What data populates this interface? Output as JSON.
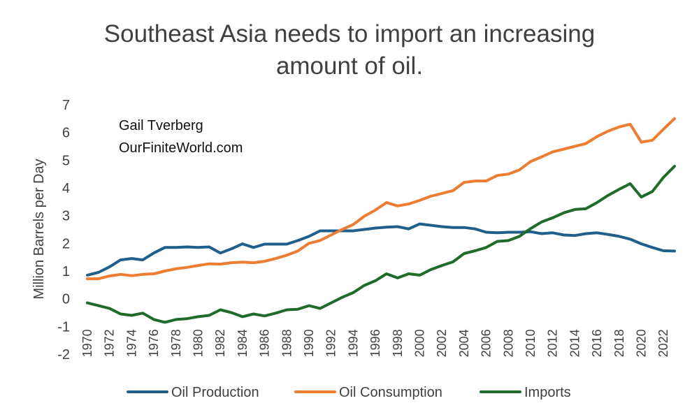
{
  "chart_data": {
    "type": "line",
    "title": "Southeast Asia needs to import an increasing amount of oil.",
    "ylabel": "Million Barrels per Day",
    "xlabel": "",
    "ylim": [
      -2,
      7
    ],
    "yticks": [
      -2,
      -1,
      0,
      1,
      2,
      3,
      4,
      5,
      6,
      7
    ],
    "xtick_labels": [
      "1970",
      "1972",
      "1974",
      "1976",
      "1978",
      "1980",
      "1982",
      "1984",
      "1986",
      "1988",
      "1990",
      "1992",
      "1994",
      "1996",
      "1998",
      "2000",
      "2002",
      "2004",
      "2006",
      "2008",
      "2010",
      "2012",
      "2014",
      "2016",
      "2018",
      "2020",
      "2022"
    ],
    "grid": false,
    "legend_position": "bottom",
    "annotations": [
      "Gail Tverberg",
      "OurFiniteWorld.com"
    ],
    "x": [
      1970,
      1971,
      1972,
      1973,
      1974,
      1975,
      1976,
      1977,
      1978,
      1979,
      1980,
      1981,
      1982,
      1983,
      1984,
      1985,
      1986,
      1987,
      1988,
      1989,
      1990,
      1991,
      1992,
      1993,
      1994,
      1995,
      1996,
      1997,
      1998,
      1999,
      2000,
      2001,
      2002,
      2003,
      2004,
      2005,
      2006,
      2007,
      2008,
      2009,
      2010,
      2011,
      2012,
      2013,
      2014,
      2015,
      2016,
      2017,
      2018,
      2019,
      2020,
      2021,
      2022,
      2023
    ],
    "series": [
      {
        "name": "Oil Production",
        "color": "#1f5f8b",
        "values": [
          0.85,
          0.95,
          1.15,
          1.4,
          1.45,
          1.4,
          1.65,
          1.85,
          1.85,
          1.87,
          1.85,
          1.87,
          1.65,
          1.8,
          1.98,
          1.85,
          1.97,
          1.97,
          1.97,
          2.1,
          2.25,
          2.45,
          2.45,
          2.45,
          2.45,
          2.5,
          2.55,
          2.58,
          2.6,
          2.52,
          2.7,
          2.65,
          2.6,
          2.57,
          2.57,
          2.52,
          2.4,
          2.38,
          2.4,
          2.4,
          2.42,
          2.35,
          2.38,
          2.3,
          2.28,
          2.35,
          2.38,
          2.32,
          2.25,
          2.15,
          1.98,
          1.85,
          1.73,
          1.72
        ]
      },
      {
        "name": "Oil Consumption",
        "color": "#ed7d31",
        "values": [
          0.72,
          0.72,
          0.82,
          0.88,
          0.83,
          0.88,
          0.9,
          1.0,
          1.08,
          1.13,
          1.2,
          1.26,
          1.25,
          1.3,
          1.32,
          1.3,
          1.35,
          1.45,
          1.57,
          1.72,
          2.0,
          2.1,
          2.3,
          2.5,
          2.68,
          2.98,
          3.2,
          3.47,
          3.35,
          3.42,
          3.55,
          3.7,
          3.8,
          3.9,
          4.2,
          4.25,
          4.25,
          4.45,
          4.5,
          4.65,
          4.95,
          5.12,
          5.3,
          5.4,
          5.5,
          5.6,
          5.85,
          6.05,
          6.2,
          6.3,
          5.65,
          5.72,
          6.12,
          6.5
        ]
      },
      {
        "name": "Imports",
        "color": "#1e6b2a",
        "values": [
          -0.15,
          -0.25,
          -0.35,
          -0.55,
          -0.6,
          -0.52,
          -0.75,
          -0.85,
          -0.75,
          -0.72,
          -0.65,
          -0.6,
          -0.4,
          -0.5,
          -0.65,
          -0.55,
          -0.62,
          -0.52,
          -0.4,
          -0.38,
          -0.25,
          -0.35,
          -0.15,
          0.05,
          0.22,
          0.48,
          0.65,
          0.9,
          0.75,
          0.9,
          0.85,
          1.05,
          1.2,
          1.33,
          1.63,
          1.73,
          1.85,
          2.07,
          2.1,
          2.25,
          2.53,
          2.77,
          2.92,
          3.1,
          3.22,
          3.25,
          3.47,
          3.73,
          3.95,
          4.15,
          3.67,
          3.87,
          4.38,
          4.78
        ]
      }
    ]
  }
}
